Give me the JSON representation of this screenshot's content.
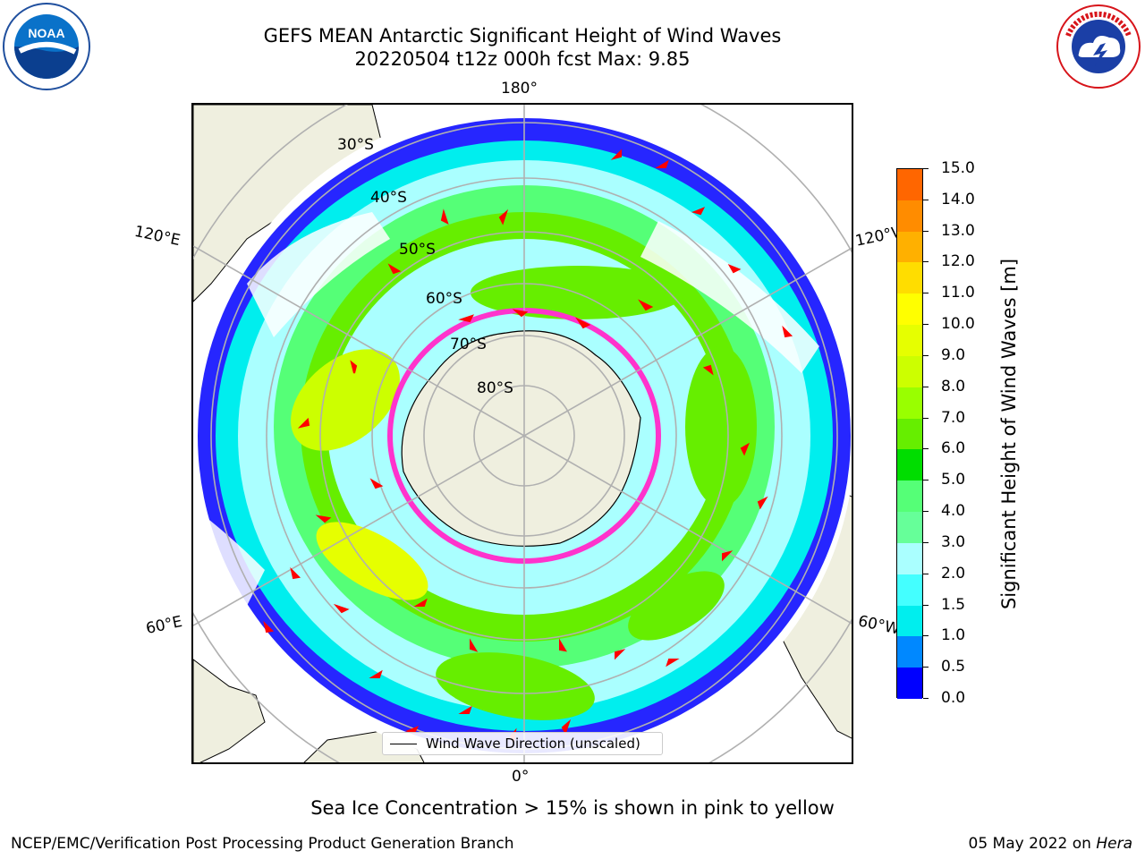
{
  "title": {
    "line1": "GEFS MEAN Antarctic Significant Height of Wind Waves",
    "line2": "20220504 t12z 000h fcst   Max: 9.85"
  },
  "logos": {
    "left": "noaa-logo",
    "right": "national-weather-service-logo"
  },
  "longitude_labels": {
    "top": "180°",
    "bottom": "0°",
    "upper_left": "120°E",
    "upper_right": "120°W",
    "lower_left": "60°E",
    "lower_right": "60°W"
  },
  "latitude_labels": [
    "30°S",
    "40°S",
    "50°S",
    "60°S",
    "70°S",
    "80°S"
  ],
  "legend": {
    "label": "Wind Wave Direction (unscaled)"
  },
  "colorbar": {
    "title": "Significant Height of Wind Waves [m]",
    "ticks": [
      "15.0",
      "14.0",
      "13.0",
      "12.0",
      "11.0",
      "10.0",
      "9.0",
      "8.0",
      "7.0",
      "6.0",
      "5.0",
      "4.0",
      "3.0",
      "2.0",
      "1.5",
      "1.0",
      "0.5",
      "0.0"
    ],
    "colors": [
      "#ff0000",
      "#ff3300",
      "#ff6600",
      "#ff8c00",
      "#ffb000",
      "#ffdd00",
      "#ffff00",
      "#e6ff00",
      "#ccff00",
      "#99ff00",
      "#66ee00",
      "#00dd00",
      "#55ff77",
      "#66ff99",
      "#aaffff",
      "#44ffff",
      "#00eeee",
      "#0088ff",
      "#0000ff"
    ]
  },
  "ice_note": "Sea Ice Concentration > 15% is shown in pink to yellow",
  "footer": {
    "left": "NCEP/EMC/Verification Post Processing Product Generation Branch",
    "right_prefix": "05 May 2022 on",
    "right_host": "Hera"
  }
}
